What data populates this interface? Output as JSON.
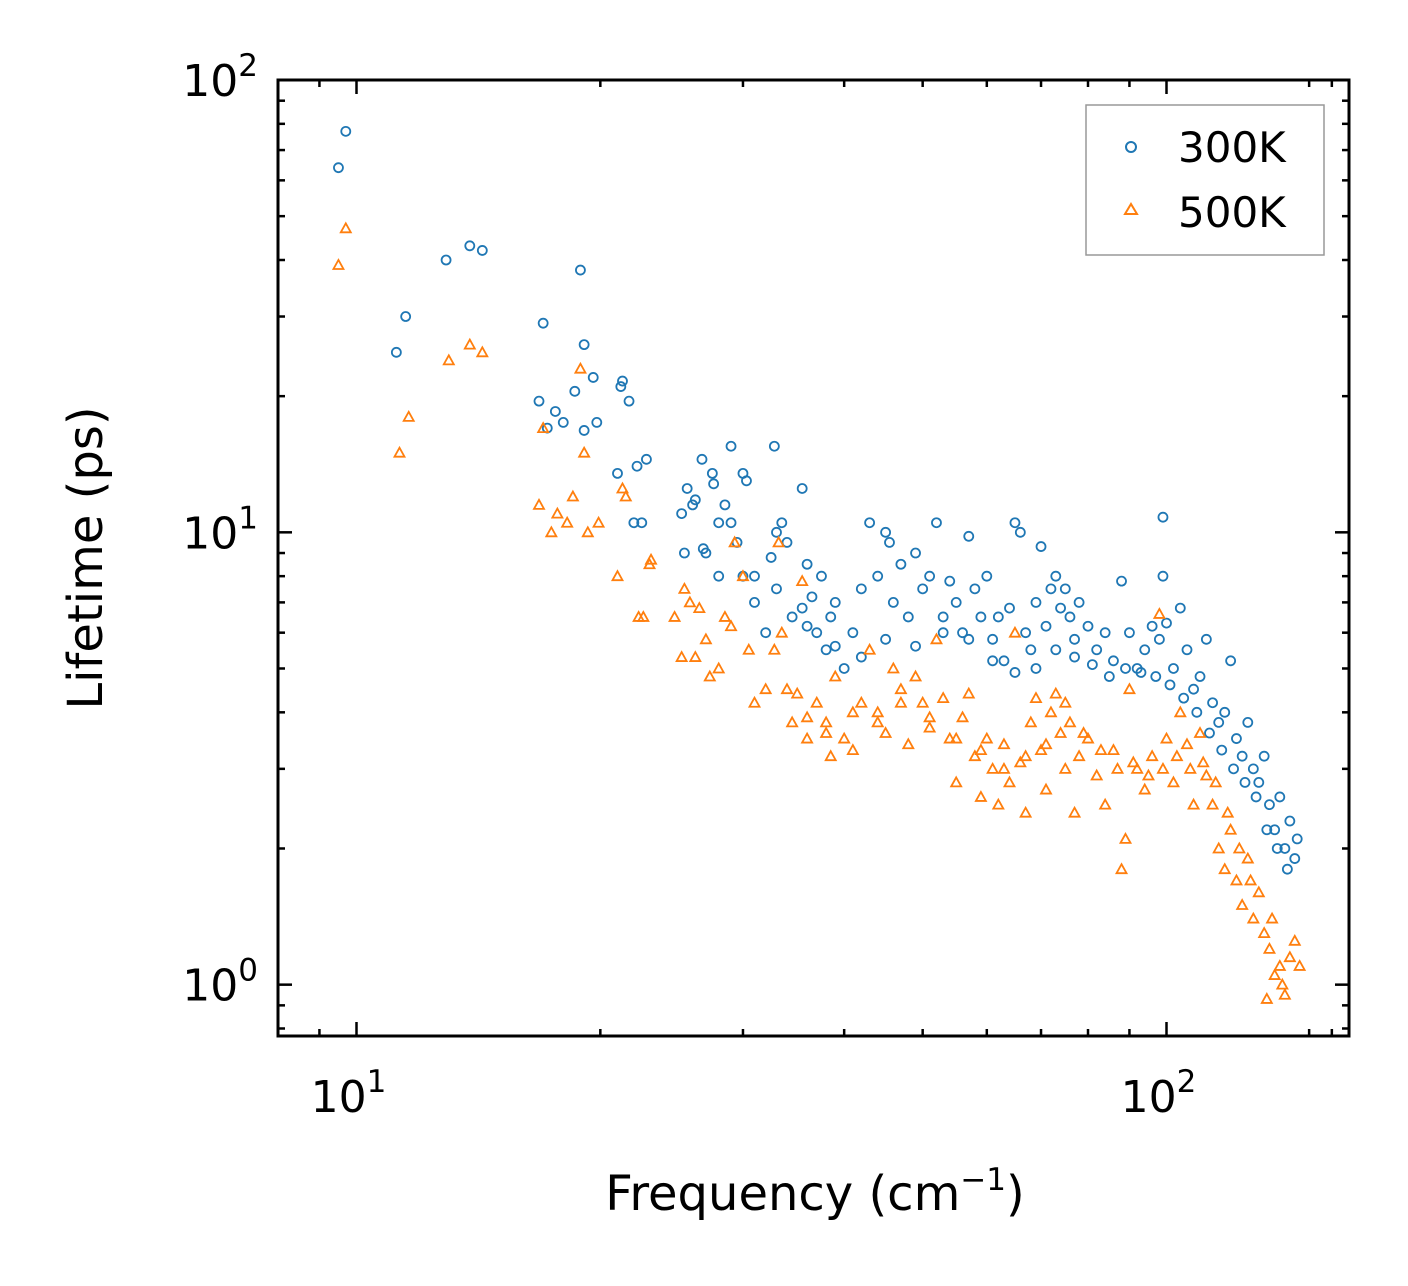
{
  "chart_data": {
    "type": "scatter",
    "title": "",
    "xlabel": "Frequency (cm",
    "xlabel_exp": "−1",
    "xlabel_close": ")",
    "ylabel": "Lifetime (ps)",
    "xscale": "log",
    "yscale": "log",
    "xlim": [
      8.0,
      168
    ],
    "ylim": [
      0.77,
      100
    ],
    "grid": false,
    "legend_placement": "top-right",
    "x_ticks": [
      {
        "base": "10",
        "exp": "1",
        "value": 10
      },
      {
        "base": "10",
        "exp": "2",
        "value": 100
      }
    ],
    "y_ticks": [
      {
        "base": "10",
        "exp": "0",
        "value": 1
      },
      {
        "base": "10",
        "exp": "1",
        "value": 10
      },
      {
        "base": "10",
        "exp": "2",
        "value": 100
      }
    ],
    "series": [
      {
        "name": "300K",
        "color": "#1f77b4",
        "marker": "circle",
        "points": [
          [
            9.5,
            64
          ],
          [
            9.7,
            77
          ],
          [
            11.2,
            25
          ],
          [
            11.5,
            30
          ],
          [
            12.9,
            40
          ],
          [
            13.8,
            43
          ],
          [
            14.3,
            42
          ],
          [
            17.0,
            29
          ],
          [
            18.9,
            38
          ],
          [
            19.1,
            26
          ],
          [
            16.8,
            19.5
          ],
          [
            18.6,
            20.5
          ],
          [
            19.6,
            22
          ],
          [
            17.2,
            17
          ],
          [
            17.6,
            18.5
          ],
          [
            18.0,
            17.5
          ],
          [
            19.1,
            16.8
          ],
          [
            19.8,
            17.5
          ],
          [
            21.2,
            21
          ],
          [
            21.3,
            21.6
          ],
          [
            21.7,
            19.5
          ],
          [
            21.0,
            13.5
          ],
          [
            22.2,
            14
          ],
          [
            22.8,
            14.5
          ],
          [
            25.2,
            11
          ],
          [
            25.6,
            12.5
          ],
          [
            26.7,
            14.5
          ],
          [
            27.5,
            13.5
          ],
          [
            27.6,
            12.8
          ],
          [
            28.5,
            11.5
          ],
          [
            29,
            15.5
          ],
          [
            30,
            13.5
          ],
          [
            30.3,
            13
          ],
          [
            32.8,
            15.5
          ],
          [
            35.5,
            12.5
          ],
          [
            26,
            11.5
          ],
          [
            26.2,
            11.8
          ],
          [
            27,
            9
          ],
          [
            28,
            10.5
          ],
          [
            29,
            10.5
          ],
          [
            29.5,
            9.5
          ],
          [
            22,
            10.5
          ],
          [
            22.5,
            10.5
          ],
          [
            25.4,
            9
          ],
          [
            26.8,
            9.2
          ],
          [
            28,
            8
          ],
          [
            30,
            8
          ],
          [
            31,
            8
          ],
          [
            32.5,
            8.8
          ],
          [
            33,
            10
          ],
          [
            33.5,
            10.5
          ],
          [
            34,
            9.5
          ],
          [
            36,
            8.5
          ],
          [
            37.5,
            8
          ],
          [
            31,
            7
          ],
          [
            32,
            6
          ],
          [
            33,
            7.5
          ],
          [
            34.5,
            6.5
          ],
          [
            35.5,
            6.8
          ],
          [
            36.5,
            7.2
          ],
          [
            37,
            6
          ],
          [
            38,
            5.5
          ],
          [
            38.5,
            6.5
          ],
          [
            39,
            7
          ],
          [
            40,
            5
          ],
          [
            41,
            6
          ],
          [
            42,
            7.5
          ],
          [
            43,
            10.5
          ],
          [
            44,
            8
          ],
          [
            45,
            10
          ],
          [
            45.5,
            9.5
          ],
          [
            46,
            7
          ],
          [
            47,
            8.5
          ],
          [
            48,
            6.5
          ],
          [
            49,
            9
          ],
          [
            50,
            7.5
          ],
          [
            51,
            8
          ],
          [
            52,
            10.5
          ],
          [
            53,
            6.5
          ],
          [
            54,
            7.8
          ],
          [
            55,
            7
          ],
          [
            56,
            6
          ],
          [
            57,
            9.8
          ],
          [
            58,
            7.5
          ],
          [
            59,
            6.5
          ],
          [
            60,
            8
          ],
          [
            61,
            5.8
          ],
          [
            62,
            6.5
          ],
          [
            63,
            5.2
          ],
          [
            64,
            6.8
          ],
          [
            65,
            10.5
          ],
          [
            66,
            10
          ],
          [
            67,
            6
          ],
          [
            68,
            5.5
          ],
          [
            69,
            7
          ],
          [
            70,
            9.3
          ],
          [
            71,
            6.2
          ],
          [
            72,
            7.5
          ],
          [
            73,
            8
          ],
          [
            74,
            6.8
          ],
          [
            75,
            7.5
          ],
          [
            76,
            6.5
          ],
          [
            77,
            5.8
          ],
          [
            78,
            7
          ],
          [
            80,
            6.2
          ],
          [
            82,
            5.5
          ],
          [
            84,
            6
          ],
          [
            86,
            5.2
          ],
          [
            88,
            7.8
          ],
          [
            90,
            6
          ],
          [
            92,
            5
          ],
          [
            94,
            5.5
          ],
          [
            96,
            6.2
          ],
          [
            98,
            5.8
          ],
          [
            99,
            10.8
          ],
          [
            99,
            8
          ],
          [
            100,
            6.3
          ],
          [
            102,
            5
          ],
          [
            104,
            6.8
          ],
          [
            106,
            5.5
          ],
          [
            108,
            4.5
          ],
          [
            110,
            4.8
          ],
          [
            112,
            5.8
          ],
          [
            114,
            4.2
          ],
          [
            116,
            3.8
          ],
          [
            118,
            4
          ],
          [
            120,
            5.2
          ],
          [
            122,
            3.5
          ],
          [
            124,
            3.2
          ],
          [
            126,
            3.8
          ],
          [
            128,
            3
          ],
          [
            130,
            2.8
          ],
          [
            132,
            3.2
          ],
          [
            134,
            2.5
          ],
          [
            136,
            2.2
          ],
          [
            138,
            2.6
          ],
          [
            140,
            2.0
          ],
          [
            142,
            2.3
          ],
          [
            144,
            1.9
          ],
          [
            145,
            2.1
          ],
          [
            141,
            1.8
          ],
          [
            137,
            2.0
          ],
          [
            133,
            2.2
          ],
          [
            129,
            2.6
          ],
          [
            125,
            2.8
          ],
          [
            121,
            3.0
          ],
          [
            117,
            3.3
          ],
          [
            113,
            3.6
          ],
          [
            109,
            4.0
          ],
          [
            105,
            4.3
          ],
          [
            101,
            4.6
          ],
          [
            97,
            4.8
          ],
          [
            93,
            4.9
          ],
          [
            89,
            5.0
          ],
          [
            85,
            4.8
          ],
          [
            81,
            5.1
          ],
          [
            77,
            5.3
          ],
          [
            73,
            5.5
          ],
          [
            69,
            5.0
          ],
          [
            65,
            4.9
          ],
          [
            61,
            5.2
          ],
          [
            57,
            5.8
          ],
          [
            53,
            6.0
          ],
          [
            49,
            5.6
          ],
          [
            45,
            5.8
          ],
          [
            42,
            5.3
          ],
          [
            39,
            5.6
          ],
          [
            36,
            6.2
          ]
        ]
      },
      {
        "name": "500K",
        "color": "#ff7f0e",
        "marker": "triangle",
        "points": [
          [
            9.5,
            39
          ],
          [
            9.7,
            47
          ],
          [
            11.3,
            15
          ],
          [
            11.6,
            18
          ],
          [
            13,
            24
          ],
          [
            13.8,
            26
          ],
          [
            14.3,
            25
          ],
          [
            16.8,
            11.5
          ],
          [
            17,
            17
          ],
          [
            17.4,
            10
          ],
          [
            17.7,
            11
          ],
          [
            18.2,
            10.5
          ],
          [
            18.5,
            12
          ],
          [
            18.9,
            23
          ],
          [
            19.1,
            15
          ],
          [
            19.3,
            10
          ],
          [
            19.9,
            10.5
          ],
          [
            21,
            8
          ],
          [
            21.3,
            12.5
          ],
          [
            21.5,
            12
          ],
          [
            22.3,
            6.5
          ],
          [
            22.6,
            6.5
          ],
          [
            23,
            8.5
          ],
          [
            23.1,
            8.7
          ],
          [
            24.7,
            6.5
          ],
          [
            25.2,
            5.3
          ],
          [
            25.4,
            7.5
          ],
          [
            25.8,
            7
          ],
          [
            26.2,
            5.3
          ],
          [
            26.5,
            6.8
          ],
          [
            27,
            5.8
          ],
          [
            27.3,
            4.8
          ],
          [
            28,
            5
          ],
          [
            28.5,
            6.5
          ],
          [
            29,
            6.2
          ],
          [
            29.3,
            9.5
          ],
          [
            30,
            8
          ],
          [
            30.5,
            5.5
          ],
          [
            31,
            4.2
          ],
          [
            32,
            4.5
          ],
          [
            32.8,
            5.5
          ],
          [
            33.2,
            9.5
          ],
          [
            33.5,
            6
          ],
          [
            34,
            4.5
          ],
          [
            34.5,
            3.8
          ],
          [
            35,
            4.4
          ],
          [
            35.5,
            7.8
          ],
          [
            36,
            3.5
          ],
          [
            37,
            4.2
          ],
          [
            38,
            3.8
          ],
          [
            38.5,
            3.2
          ],
          [
            39,
            4.8
          ],
          [
            40,
            3.5
          ],
          [
            41,
            3.3
          ],
          [
            42,
            4.2
          ],
          [
            43,
            5.5
          ],
          [
            44,
            4
          ],
          [
            45,
            3.6
          ],
          [
            46,
            5
          ],
          [
            47,
            4.5
          ],
          [
            48,
            3.4
          ],
          [
            49,
            4.8
          ],
          [
            50,
            4.2
          ],
          [
            51,
            3.7
          ],
          [
            52,
            5.8
          ],
          [
            53,
            4.3
          ],
          [
            54,
            3.5
          ],
          [
            55,
            2.8
          ],
          [
            56,
            3.9
          ],
          [
            57,
            4.4
          ],
          [
            58,
            3.2
          ],
          [
            59,
            2.6
          ],
          [
            60,
            3.5
          ],
          [
            61,
            3.0
          ],
          [
            62,
            2.5
          ],
          [
            63,
            3.4
          ],
          [
            64,
            2.8
          ],
          [
            65,
            6
          ],
          [
            66,
            3.1
          ],
          [
            67,
            2.4
          ],
          [
            68,
            3.8
          ],
          [
            69,
            4.3
          ],
          [
            70,
            3.3
          ],
          [
            71,
            2.7
          ],
          [
            72,
            4.0
          ],
          [
            73,
            4.4
          ],
          [
            74,
            3.6
          ],
          [
            75,
            3.0
          ],
          [
            76,
            3.8
          ],
          [
            77,
            2.4
          ],
          [
            78,
            3.2
          ],
          [
            80,
            3.5
          ],
          [
            82,
            2.9
          ],
          [
            84,
            2.5
          ],
          [
            86,
            3.3
          ],
          [
            88,
            1.8
          ],
          [
            89,
            2.1
          ],
          [
            90,
            4.5
          ],
          [
            92,
            3.0
          ],
          [
            94,
            2.7
          ],
          [
            96,
            3.2
          ],
          [
            98,
            6.6
          ],
          [
            100,
            3.5
          ],
          [
            102,
            2.8
          ],
          [
            104,
            4.0
          ],
          [
            106,
            3.4
          ],
          [
            108,
            2.5
          ],
          [
            110,
            3.6
          ],
          [
            112,
            2.9
          ],
          [
            114,
            2.5
          ],
          [
            116,
            2.0
          ],
          [
            118,
            1.8
          ],
          [
            120,
            2.2
          ],
          [
            122,
            1.7
          ],
          [
            124,
            1.5
          ],
          [
            126,
            1.9
          ],
          [
            128,
            1.4
          ],
          [
            130,
            1.6
          ],
          [
            132,
            1.3
          ],
          [
            134,
            1.2
          ],
          [
            136,
            1.05
          ],
          [
            138,
            1.1
          ],
          [
            140,
            0.95
          ],
          [
            142,
            1.15
          ],
          [
            144,
            1.25
          ],
          [
            146,
            1.1
          ],
          [
            133,
            0.93
          ],
          [
            139,
            1.0
          ],
          [
            135,
            1.4
          ],
          [
            127,
            1.7
          ],
          [
            123,
            2.0
          ],
          [
            119,
            2.4
          ],
          [
            115,
            2.8
          ],
          [
            111,
            3.1
          ],
          [
            107,
            3.0
          ],
          [
            103,
            3.2
          ],
          [
            99,
            3.0
          ],
          [
            95,
            2.9
          ],
          [
            91,
            3.1
          ],
          [
            87,
            3.0
          ],
          [
            83,
            3.3
          ],
          [
            79,
            3.6
          ],
          [
            75,
            4.2
          ],
          [
            71,
            3.4
          ],
          [
            67,
            3.2
          ],
          [
            63,
            3.0
          ],
          [
            59,
            3.3
          ],
          [
            55,
            3.5
          ],
          [
            51,
            3.9
          ],
          [
            47,
            4.2
          ],
          [
            44,
            3.8
          ],
          [
            41,
            4.0
          ],
          [
            38,
            3.6
          ],
          [
            36,
            3.9
          ]
        ]
      }
    ]
  }
}
